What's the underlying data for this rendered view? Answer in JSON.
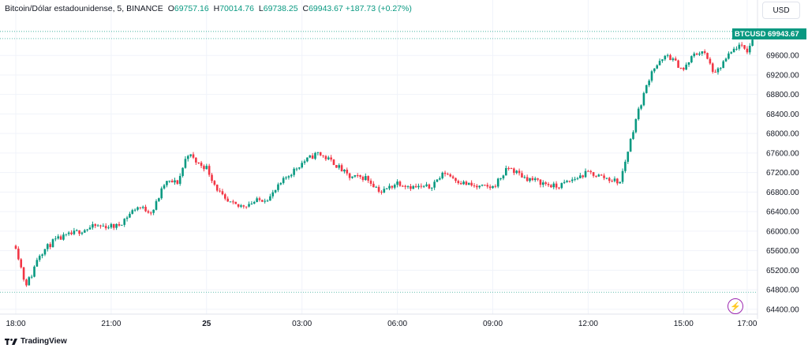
{
  "legend": {
    "symbol": "Bitcoin/Dólar estadounidense, 5, BINANCE",
    "o_label": "O",
    "o_value": "69757.16",
    "h_label": "H",
    "h_value": "70014.76",
    "l_label": "L",
    "l_value": "69738.25",
    "c_label": "C",
    "c_value": "69943.67",
    "change": "+187.73 (+0.27%)"
  },
  "currency_button": "USD",
  "symbol_tag": "BTCUSD",
  "last_price_tag": "69943.67",
  "footer_brand": "TradingView",
  "colors": {
    "up": "#089981",
    "down": "#f23645",
    "grid": "#f0f3fa",
    "accent": "#9c27b0"
  },
  "chart_data": {
    "type": "candlestick",
    "symbol": "BTCUSD",
    "yticks": [
      69600,
      69200,
      68800,
      68400,
      68000,
      67600,
      67200,
      66800,
      66400,
      66000,
      65600,
      65200,
      64800,
      64400
    ],
    "ylim": [
      64300,
      70250
    ],
    "xticks": [
      "18:00",
      "21:00",
      "25",
      "03:00",
      "06:00",
      "09:00",
      "12:00",
      "15:00",
      "17:00"
    ],
    "xtick_hours": [
      0,
      3,
      6,
      9,
      12,
      15,
      18,
      21,
      23
    ],
    "interval_minutes": 5,
    "grid": true,
    "last_close": 69943.67,
    "path_hours": [
      0,
      0.3,
      0.5,
      0.7,
      1.2,
      2.0,
      2.5,
      3.2,
      3.8,
      4.3,
      4.7,
      5.1,
      5.4,
      5.7,
      6.0,
      6.3,
      6.6,
      7.0,
      7.5,
      8.0,
      8.5,
      9.0,
      9.5,
      10.0,
      10.5,
      11.0,
      11.5,
      12.0,
      12.5,
      13.0,
      13.5,
      14.0,
      14.5,
      15.0,
      15.5,
      16.0,
      17.0,
      18.0,
      19.0,
      19.5,
      20.0,
      20.5,
      21.0,
      21.3,
      21.6,
      22.0,
      22.3,
      22.7,
      23.0,
      23.2
    ],
    "path_prices": [
      65700,
      64900,
      65100,
      65500,
      65800,
      66000,
      66100,
      66100,
      66500,
      66400,
      67000,
      67000,
      67600,
      67400,
      67300,
      66900,
      66600,
      66500,
      66600,
      66700,
      67100,
      67400,
      67600,
      67400,
      67100,
      67100,
      66800,
      67000,
      66900,
      66900,
      67200,
      67000,
      66900,
      66900,
      67300,
      67100,
      66900,
      67200,
      67000,
      68300,
      69300,
      69600,
      69300,
      69600,
      69700,
      69200,
      69500,
      69800,
      69700,
      69944
    ]
  }
}
